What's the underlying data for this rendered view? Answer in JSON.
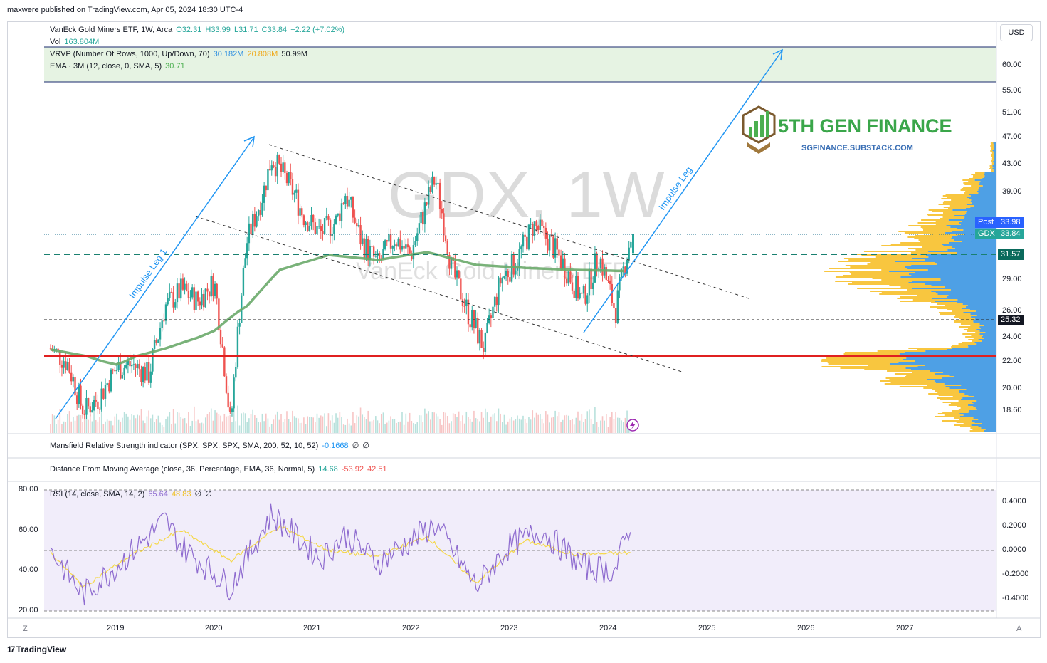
{
  "caption": "maxwere published on TradingView.com, Apr 05, 2024 18:30 UTC-4",
  "currency_button": "USD",
  "legend": {
    "symbol": "VanEck Gold Miners ETF, 1W, Arca",
    "open": "O32.31",
    "high": "H33.99",
    "low": "L31.71",
    "close": "C33.84",
    "change": "+2.22 (+7.02%)",
    "vol_label": "Vol",
    "vol_value": "163.804M",
    "vrvp_label": "VRVP (Number Of Rows, 1000, Up/Down, 70)",
    "vrvp_v1": "30.182M",
    "vrvp_v2": "20.808M",
    "vrvp_v3": "50.99M",
    "ema_label": "EMA · 3M (12, close, 0, SMA, 5)",
    "ema_value": "30.71"
  },
  "watermark": {
    "main": "GDX, 1W",
    "sub": "VanEck Gold Miners ETF"
  },
  "brand": {
    "name": "5TH GEN FINANCE",
    "url": "SGFINANCE.SUBSTACK.COM"
  },
  "annotations": {
    "impulse_leg_1": "Impulse Leg 1",
    "impulse_leg": "Impulse Leg"
  },
  "price_axis": [
    "60.00",
    "55.00",
    "51.00",
    "47.00",
    "43.00",
    "39.00",
    "29.00",
    "26.00",
    "24.00",
    "22.00",
    "20.00",
    "18.60"
  ],
  "price_tags": {
    "post_label": "Post",
    "post_value": "33.98",
    "gdx_label": "GDX",
    "gdx_value": "33.84",
    "level_1": "31.57",
    "level_2": "25.32"
  },
  "mansfield": {
    "label": "Mansfield Relative Strength indicator (SPX, SPX, SPX, SMA, 200, 52, 10, 52)",
    "v1": "-0.1668",
    "v2": "∅",
    "v3": "∅"
  },
  "distance": {
    "label": "Distance From Moving Average (close, 36, Percentage, EMA, 36, Normal, 5)",
    "v1": "14.68",
    "v2": "-53.92",
    "v3": "42.51"
  },
  "rsi": {
    "label": "RSI (14, close, SMA, 14, 2)",
    "v1": "65.64",
    "v2": "48.83",
    "v3": "∅",
    "v4": "∅"
  },
  "rsi_left_axis": [
    "80.00",
    "60.00",
    "40.00",
    "20.00"
  ],
  "rsi_right_axis": [
    "0.4000",
    "0.2000",
    "0.0000",
    "-0.2000",
    "-0.4000"
  ],
  "time_axis": [
    "2019",
    "2020",
    "2021",
    "2022",
    "2023",
    "2024",
    "2025",
    "2026",
    "2027"
  ],
  "corner_left": "Z",
  "corner_right": "A",
  "footer": "TradingView",
  "colors": {
    "up": "#26a69a",
    "down": "#ef5350",
    "ema": "#6aaa6a",
    "support": "#e02020",
    "impulse": "#2196f3",
    "profile_up": "#2f8fe0",
    "profile_down": "#f7c02a",
    "rsi": "#8e6bcf",
    "rsi_ma": "#f5d84a"
  },
  "chart_data": [
    {
      "type": "candlestick",
      "title": "GDX, 1W",
      "symbol": "GDX",
      "ylim": [
        16.5,
        63
      ],
      "x_range": [
        "2018-05",
        "2027-12"
      ],
      "key_levels": [
        22.3,
        25.32,
        31.57,
        33.84
      ],
      "weekly_close_path": [
        [
          "2018-05",
          23.0
        ],
        [
          "2018-07",
          22.0
        ],
        [
          "2018-09",
          18.5
        ],
        [
          "2018-11",
          19.5
        ],
        [
          "2019-01",
          21.5
        ],
        [
          "2019-03",
          21.8
        ],
        [
          "2019-05",
          21.0
        ],
        [
          "2019-07",
          26.5
        ],
        [
          "2019-09",
          28.0
        ],
        [
          "2019-11",
          27.0
        ],
        [
          "2020-01",
          28.8
        ],
        [
          "2020-03",
          17.5
        ],
        [
          "2020-05",
          33.0
        ],
        [
          "2020-07",
          39.0
        ],
        [
          "2020-08",
          44.0
        ],
        [
          "2020-10",
          40.5
        ],
        [
          "2020-12",
          36.0
        ],
        [
          "2021-02",
          34.0
        ],
        [
          "2021-04",
          35.5
        ],
        [
          "2021-05",
          39.0
        ],
        [
          "2021-07",
          33.0
        ],
        [
          "2021-09",
          30.5
        ],
        [
          "2021-11",
          33.5
        ],
        [
          "2022-01",
          31.5
        ],
        [
          "2022-04",
          41.0
        ],
        [
          "2022-06",
          30.0
        ],
        [
          "2022-08",
          26.0
        ],
        [
          "2022-10",
          23.0
        ],
        [
          "2022-12",
          29.0
        ],
        [
          "2023-02",
          31.0
        ],
        [
          "2023-04",
          35.0
        ],
        [
          "2023-06",
          33.0
        ],
        [
          "2023-08",
          30.0
        ],
        [
          "2023-10",
          27.0
        ],
        [
          "2023-12",
          31.5
        ],
        [
          "2024-02",
          26.0
        ],
        [
          "2024-03",
          30.0
        ],
        [
          "2024-04",
          33.84
        ]
      ],
      "ema_path": [
        [
          "2018-05",
          22.9
        ],
        [
          "2019-01",
          21.8
        ],
        [
          "2019-07",
          23.0
        ],
        [
          "2020-01",
          24.5
        ],
        [
          "2020-05",
          26.5
        ],
        [
          "2020-09",
          30.0
        ],
        [
          "2021-03",
          31.5
        ],
        [
          "2021-09",
          31.0
        ],
        [
          "2022-03",
          31.8
        ],
        [
          "2022-09",
          30.5
        ],
        [
          "2023-03",
          30.2
        ],
        [
          "2023-09",
          30.0
        ],
        [
          "2024-03",
          29.9
        ]
      ]
    },
    {
      "type": "line",
      "title": "RSI (14, close, SMA, 14, 2)",
      "ylim": [
        20,
        80
      ],
      "series": [
        {
          "name": "RSI",
          "points": [
            [
              "2018-05",
              50
            ],
            [
              "2018-09",
              28
            ],
            [
              "2019-01",
              42
            ],
            [
              "2019-07",
              65
            ],
            [
              "2019-09",
              52
            ],
            [
              "2020-03",
              32
            ],
            [
              "2020-08",
              68
            ],
            [
              "2021-02",
              46
            ],
            [
              "2021-05",
              58
            ],
            [
              "2021-09",
              44
            ],
            [
              "2022-04",
              63
            ],
            [
              "2022-09",
              32
            ],
            [
              "2023-01",
              52
            ],
            [
              "2023-05",
              60
            ],
            [
              "2023-10",
              42
            ],
            [
              "2024-02",
              40
            ],
            [
              "2024-04",
              65.64
            ]
          ]
        },
        {
          "name": "RSI MA",
          "points": [
            [
              "2018-05",
              49
            ],
            [
              "2018-09",
              32
            ],
            [
              "2019-03",
              48
            ],
            [
              "2019-09",
              60
            ],
            [
              "2020-03",
              45
            ],
            [
              "2020-09",
              62
            ],
            [
              "2021-03",
              50
            ],
            [
              "2021-09",
              47
            ],
            [
              "2022-03",
              57
            ],
            [
              "2022-09",
              34
            ],
            [
              "2023-03",
              55
            ],
            [
              "2023-09",
              48
            ],
            [
              "2024-04",
              48.83
            ]
          ]
        }
      ]
    }
  ]
}
